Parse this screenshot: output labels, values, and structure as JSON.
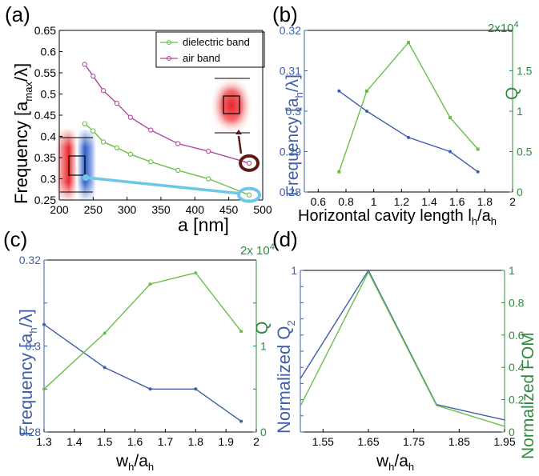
{
  "colors": {
    "blue": "#3f5fa8",
    "green": "#6abf4b",
    "magenta": "#b04a9e",
    "axis_green": "#2e8b3e",
    "axis_blue": "#3f5fa8",
    "arrow": "#5c1a14",
    "cyan": "#6ec6e8"
  },
  "chart_data": [
    {
      "id": "a",
      "type": "line",
      "panel_label": "(a)",
      "title": "",
      "xlabel": "a [nm]",
      "ylabel": "Frequency [a",
      "ylabel_sub": "max",
      "ylabel_tail": "/λ]",
      "xlim": [
        200,
        500
      ],
      "ylim": [
        0.25,
        0.65
      ],
      "xticks": [
        "200",
        "250",
        "300",
        "350",
        "400",
        "450",
        "500"
      ],
      "yticks": [
        "0.25",
        "0.3",
        "0.35",
        "0.4",
        "0.45",
        "0.5",
        "0.55",
        "0.6",
        "0.65"
      ],
      "series": [
        {
          "name": "dielectric band",
          "color": "#6abf4b",
          "x": [
            237.5,
            250,
            265,
            285,
            305,
            335,
            375,
            420,
            480
          ],
          "y": [
            0.43,
            0.413,
            0.387,
            0.373,
            0.358,
            0.34,
            0.32,
            0.3,
            0.262
          ]
        },
        {
          "name": "air band",
          "color": "#b04a9e",
          "x": [
            237.5,
            250,
            265,
            285,
            305,
            335,
            375,
            420,
            480
          ],
          "y": [
            0.57,
            0.542,
            0.508,
            0.478,
            0.445,
            0.415,
            0.383,
            0.365,
            0.337
          ]
        }
      ]
    },
    {
      "id": "b",
      "type": "line",
      "panel_label": "(b)",
      "xlabel": "Horizontal cavity length l",
      "xlabel_sub": "h",
      "xlabel_mid": "/a",
      "xlabel_sub2": "h",
      "ylabel": "Frequency [a",
      "ylabel_sub": "h",
      "ylabel_tail": "/λ]",
      "y2label": "Q",
      "y2_exponent": "2x10",
      "y2_exponent_power": "4",
      "xlim": [
        0.5,
        2
      ],
      "ylim": [
        0.28,
        0.32
      ],
      "y2lim": [
        0,
        20000
      ],
      "xticks": [
        "0.6",
        "0.8",
        "1",
        "1.2",
        "1.4",
        "1.6",
        "1.8",
        "2"
      ],
      "yticks": [
        "0.28",
        "0.29",
        "0.3",
        "0.31",
        "0.32"
      ],
      "y2ticks": [
        "0",
        "0.5",
        "1",
        "1.5"
      ],
      "series": [
        {
          "name": "Frequency",
          "axis": "left",
          "color": "#3f5fa8",
          "x": [
            0.75,
            0.95,
            1.25,
            1.55,
            1.75
          ],
          "y": [
            0.305,
            0.3,
            0.2935,
            0.29,
            0.285
          ]
        },
        {
          "name": "Q",
          "axis": "right",
          "color": "#6abf4b",
          "x": [
            0.75,
            0.95,
            1.25,
            1.55,
            1.75
          ],
          "y": [
            2500,
            12500,
            18500,
            9200,
            5300
          ]
        }
      ]
    },
    {
      "id": "c",
      "type": "line",
      "panel_label": "(c)",
      "xlabel": "w",
      "xlabel_sub": "h",
      "xlabel_mid": "/a",
      "xlabel_sub2": "h",
      "ylabel": "Frequency [a",
      "ylabel_sub": "h",
      "ylabel_tail": "/λ]",
      "y2label": "Q",
      "y2_exponent": "2x 10",
      "y2_exponent_power": "4",
      "xlim": [
        1.3,
        2.0
      ],
      "ylim": [
        0.28,
        0.32
      ],
      "y2lim": [
        0,
        20000
      ],
      "xticks": [
        "1.3",
        "1.4",
        "1.5",
        "1.6",
        "1.7",
        "1.8",
        "1.9",
        "2"
      ],
      "yticks": [
        "0.28",
        "",
        "0.3",
        "",
        "0.32"
      ],
      "y2ticks": [
        "0",
        "",
        "1",
        ""
      ],
      "series": [
        {
          "name": "Frequency",
          "axis": "left",
          "color": "#3f5fa8",
          "x": [
            1.3,
            1.5,
            1.65,
            1.8,
            1.95
          ],
          "y": [
            0.305,
            0.295,
            0.29,
            0.29,
            0.2825
          ]
        },
        {
          "name": "Q",
          "axis": "right",
          "color": "#6abf4b",
          "x": [
            1.3,
            1.5,
            1.65,
            1.8,
            1.95
          ],
          "y": [
            5000,
            11500,
            17200,
            18500,
            11700
          ]
        }
      ]
    },
    {
      "id": "d",
      "type": "line",
      "panel_label": "(d)",
      "xlabel": "w",
      "xlabel_sub": "h",
      "xlabel_mid": "/a",
      "xlabel_sub2": "h",
      "ylabel": "Normalized Q",
      "ylabel_sub": "2",
      "ylabel_tail": "",
      "y2label": "Normalized FOM",
      "xlim": [
        1.5,
        1.95
      ],
      "ylim": [
        0,
        1
      ],
      "y2lim": [
        0,
        1
      ],
      "xticks": [
        "1.55",
        "1.65",
        "1.75",
        "1.85",
        "1.95"
      ],
      "yticks": [
        "0",
        "",
        "0.2",
        "",
        "0.4",
        "",
        "0.6",
        "",
        "0.8",
        "",
        "1"
      ],
      "yticks_left": [
        "",
        "",
        "",
        "",
        "",
        "",
        "",
        "",
        "",
        "",
        "1"
      ],
      "y2ticks": [
        "0",
        "0.2",
        "0.4",
        "0.6",
        "0.8",
        "1"
      ],
      "series": [
        {
          "name": "Normalized Q2",
          "axis": "left",
          "color": "#3f5fa8",
          "x": [
            1.5,
            1.65,
            1.8,
            1.95
          ],
          "y": [
            0.33,
            1.0,
            0.17,
            0.075
          ]
        },
        {
          "name": "Normalized FOM",
          "axis": "right",
          "color": "#6abf4b",
          "x": [
            1.5,
            1.65,
            1.8,
            1.95
          ],
          "y": [
            0.16,
            0.99,
            0.165,
            0.035
          ]
        }
      ]
    }
  ]
}
